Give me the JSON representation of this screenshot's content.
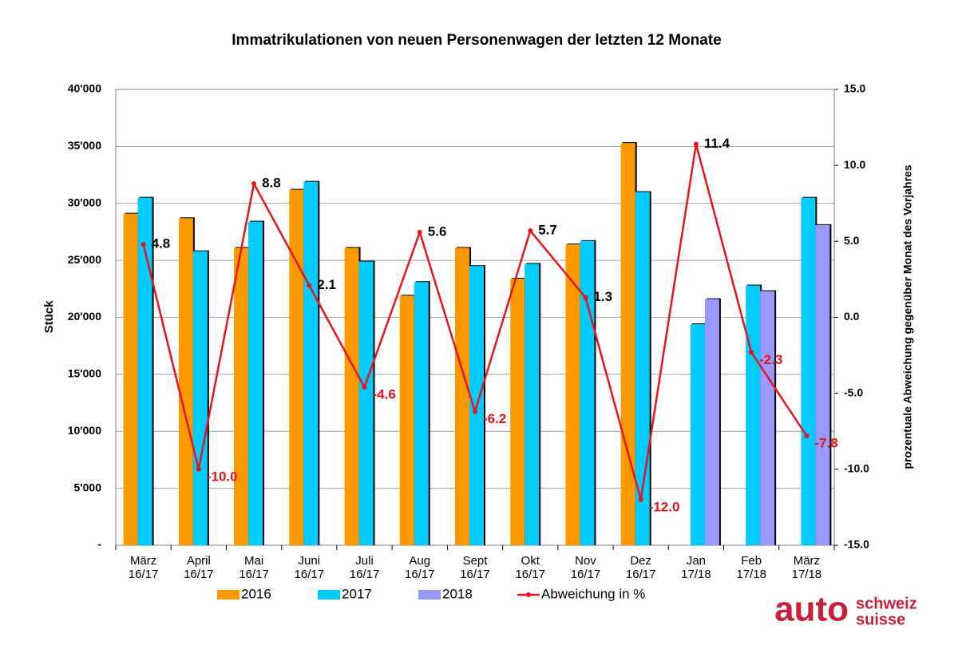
{
  "chart_data": {
    "type": "bar",
    "title": "Immatrikulationen von neuen Personenwagen der letzten 12 Monate",
    "y_label": "Stück",
    "y2_label": "prozentuale Abweichung gegenüber Monat des Vorjahres",
    "categories": [
      [
        "März",
        "16/17"
      ],
      [
        "April",
        "16/17"
      ],
      [
        "Mai",
        "16/17"
      ],
      [
        "Juni",
        "16/17"
      ],
      [
        "Juli",
        "16/17"
      ],
      [
        "Aug",
        "16/17"
      ],
      [
        "Sept",
        "16/17"
      ],
      [
        "Okt",
        "16/17"
      ],
      [
        "Nov",
        "16/17"
      ],
      [
        "Dez",
        "16/17"
      ],
      [
        "Jan",
        "17/18"
      ],
      [
        "Feb",
        "17/18"
      ],
      [
        "März",
        "17/18"
      ]
    ],
    "series": [
      {
        "name": "2016",
        "color": "#ff9900",
        "values": [
          29100,
          28700,
          26100,
          31200,
          26100,
          21900,
          26100,
          23400,
          26400,
          35300,
          null,
          null,
          null
        ]
      },
      {
        "name": "2017",
        "color": "#00ccff",
        "values": [
          30500,
          25800,
          28400,
          31900,
          24900,
          23100,
          24500,
          24700,
          26700,
          31000,
          19400,
          22800,
          30500
        ]
      },
      {
        "name": "2018",
        "color": "#9999ff",
        "values": [
          null,
          null,
          null,
          null,
          null,
          null,
          null,
          null,
          null,
          null,
          21600,
          22300,
          28100
        ]
      },
      {
        "name": "Abweichung in %",
        "type": "line",
        "axis": "y2",
        "color": "#e8141c",
        "values": [
          4.8,
          -10,
          8.8,
          2.1,
          -4.6,
          5.6,
          -6.2,
          5.7,
          1.3,
          -12,
          11.4,
          -2.3,
          -7.8
        ],
        "value_labels": [
          "4.8",
          "-10.0",
          "8.8",
          "2.1",
          "-4.6",
          "5.6",
          "-6.2",
          "5.7",
          "1.3",
          "-12.0",
          "11.4",
          "-2.3",
          "-7.8"
        ]
      }
    ],
    "ylim": [
      0,
      40000
    ],
    "yticks": [
      {
        "value": 0,
        "label": "-"
      },
      {
        "value": 5000,
        "label": "5'000"
      },
      {
        "value": 10000,
        "label": "10'000"
      },
      {
        "value": 15000,
        "label": "15'000"
      },
      {
        "value": 20000,
        "label": "20'000"
      },
      {
        "value": 25000,
        "label": "25'000"
      },
      {
        "value": 30000,
        "label": "30'000"
      },
      {
        "value": 35000,
        "label": "35'000"
      },
      {
        "value": 40000,
        "label": "40'000"
      }
    ],
    "y2lim": [
      -15,
      15
    ],
    "y2ticks": [
      {
        "value": -15,
        "label": "-15.0"
      },
      {
        "value": -10,
        "label": "-10.0"
      },
      {
        "value": -5,
        "label": "-5.0"
      },
      {
        "value": 0,
        "label": "0.0"
      },
      {
        "value": 5,
        "label": "5.0"
      },
      {
        "value": 10,
        "label": "10.0"
      },
      {
        "value": 15,
        "label": "15.0"
      }
    ],
    "grid": true
  },
  "logo": {
    "main": "auto",
    "line1": "schweiz",
    "line2": "suisse"
  }
}
